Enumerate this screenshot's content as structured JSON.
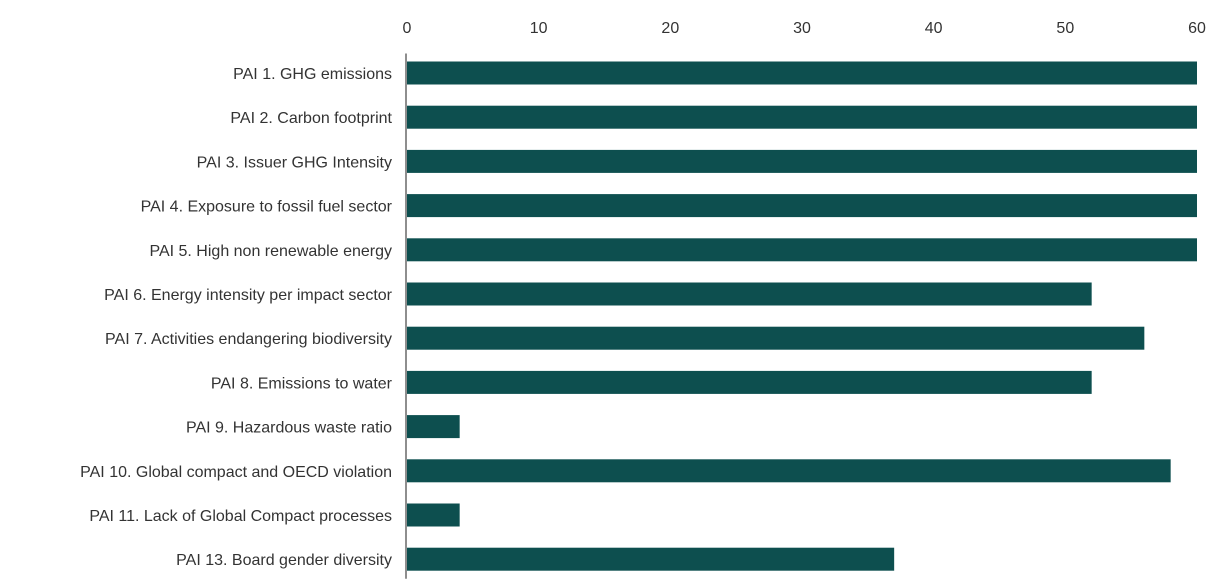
{
  "colors": {
    "bar": "#0d4f4f",
    "axis": "#444444",
    "text": "#333333",
    "background": "#ffffff"
  },
  "chart_data": {
    "type": "bar",
    "orientation": "horizontal",
    "title": "",
    "xlabel": "",
    "ylabel": "",
    "xlim": [
      0,
      60
    ],
    "x_ticks": [
      0,
      10,
      20,
      30,
      40,
      50,
      60
    ],
    "x_axis_position": "top",
    "grid": false,
    "legend": "none",
    "categories": [
      "PAI 1. GHG emissions",
      "PAI 2. Carbon footprint",
      "PAI 3. Issuer GHG Intensity",
      "PAI 4. Exposure to fossil fuel sector",
      "PAI 5. High non renewable energy",
      "PAI 6. Energy intensity per impact sector",
      "PAI 7. Activities endangering biodiversity",
      "PAI 8. Emissions to water",
      "PAI 9. Hazardous waste ratio",
      "PAI 10. Global compact and OECD violation",
      "PAI 11. Lack of Global Compact processes",
      "PAI 13. Board gender diversity"
    ],
    "values": [
      60,
      60,
      60,
      60,
      60,
      52,
      56,
      52,
      4,
      58,
      4,
      37
    ]
  }
}
